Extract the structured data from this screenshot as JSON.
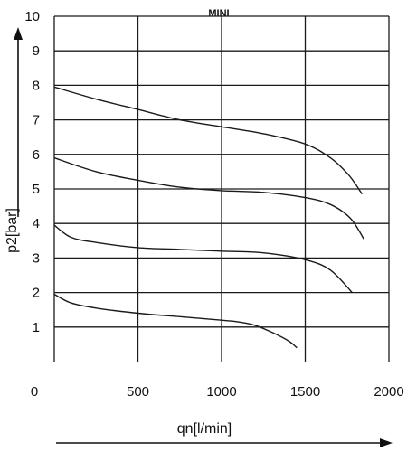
{
  "chart_data": {
    "type": "line",
    "title": "MINI",
    "xlabel": "qn[l/min]",
    "ylabel": "p2[bar]",
    "xlim": [
      0,
      2000
    ],
    "ylim": [
      0,
      10
    ],
    "x_ticks": [
      "0",
      "500",
      "1000",
      "1500",
      "2000"
    ],
    "y_ticks": [
      "1",
      "2",
      "3",
      "4",
      "5",
      "6",
      "7",
      "8",
      "9",
      "10"
    ],
    "grid": true,
    "series": [
      {
        "x": [
          0,
          250,
          500,
          750,
          1000,
          1250,
          1500,
          1650,
          1760,
          1840
        ],
        "y": [
          7.95,
          7.6,
          7.3,
          7.0,
          6.8,
          6.6,
          6.3,
          5.9,
          5.4,
          4.85
        ]
      },
      {
        "x": [
          0,
          250,
          500,
          750,
          1000,
          1250,
          1500,
          1650,
          1770,
          1850
        ],
        "y": [
          5.9,
          5.5,
          5.25,
          5.05,
          4.95,
          4.9,
          4.75,
          4.55,
          4.15,
          3.55
        ]
      },
      {
        "x": [
          0,
          100,
          250,
          500,
          750,
          1000,
          1250,
          1500,
          1650,
          1780
        ],
        "y": [
          3.95,
          3.6,
          3.45,
          3.3,
          3.25,
          3.2,
          3.15,
          2.95,
          2.65,
          2.0
        ]
      },
      {
        "x": [
          0,
          100,
          250,
          500,
          750,
          1000,
          1100,
          1200,
          1300,
          1400,
          1450
        ],
        "y": [
          1.95,
          1.7,
          1.55,
          1.4,
          1.3,
          1.2,
          1.15,
          1.05,
          0.85,
          0.6,
          0.4
        ]
      }
    ]
  }
}
